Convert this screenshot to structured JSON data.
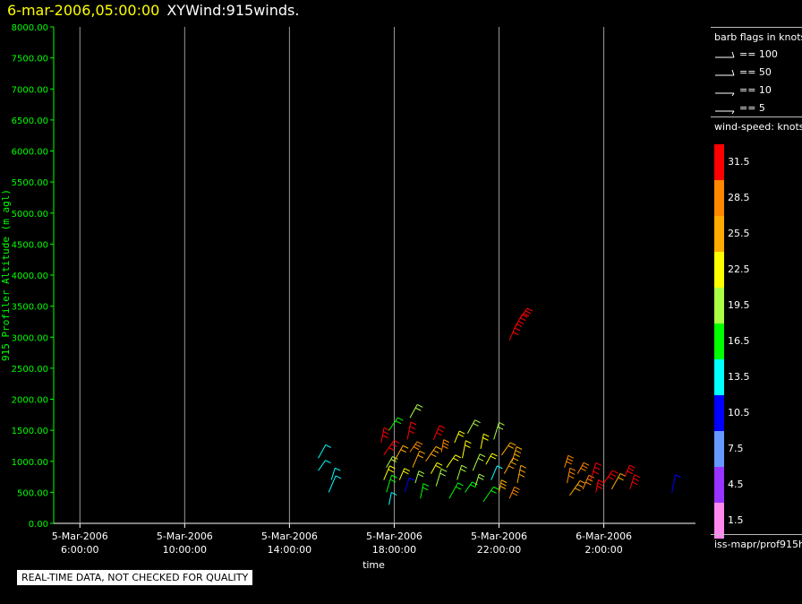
{
  "header": {
    "date": "6-mar-2006,05:00:00",
    "title": "XYWind:915winds."
  },
  "colors": {
    "axis": "#00ff00",
    "grid": "#9a9a9a",
    "tick_text": "#ffffff"
  },
  "legend": {
    "barb_title": "barb flags in knots",
    "barbs": [
      "== 100",
      "== 50",
      "== 10",
      "== 5"
    ],
    "speed_title": "wind-speed: knots",
    "bins": [
      {
        "label": "31.5",
        "color": "#ff0000"
      },
      {
        "label": "28.5",
        "color": "#ff8800"
      },
      {
        "label": "25.5",
        "color": "#ffaa00"
      },
      {
        "label": "22.5",
        "color": "#ffff00"
      },
      {
        "label": "19.5",
        "color": "#aaff44"
      },
      {
        "label": "16.5",
        "color": "#00ff00"
      },
      {
        "label": "13.5",
        "color": "#00ffff"
      },
      {
        "label": "10.5",
        "color": "#0000ff"
      },
      {
        "label": "7.5",
        "color": "#6699ff"
      },
      {
        "label": "4.5",
        "color": "#9933ff"
      },
      {
        "label": "1.5",
        "color": "#ff88ee"
      }
    ],
    "source": "iss-mapr/prof915h"
  },
  "notice": "REAL-TIME DATA, NOT CHECKED FOR QUALITY",
  "chart_data": {
    "type": "scatter",
    "title": "6-mar-2006,05:00:00  XYWind:915winds.",
    "xlabel": "time",
    "ylabel": "915 Profiler Altitude (m agl)",
    "x_ticks": [
      {
        "date": "5-Mar-2006",
        "time": "6:00:00"
      },
      {
        "date": "5-Mar-2006",
        "time": "10:00:00"
      },
      {
        "date": "5-Mar-2006",
        "time": "14:00:00"
      },
      {
        "date": "5-Mar-2006",
        "time": "18:00:00"
      },
      {
        "date": "5-Mar-2006",
        "time": "22:00:00"
      },
      {
        "date": "6-Mar-2006",
        "time": "2:00:00"
      }
    ],
    "y_ticks": [
      "0.00",
      "500.00",
      "1000.00",
      "1500.00",
      "2000.00",
      "2500.00",
      "3000.00",
      "3500.00",
      "4000.00",
      "4500.00",
      "5000.00",
      "5500.00",
      "6000.00",
      "6500.00",
      "7000.00",
      "7500.00",
      "8000.00"
    ],
    "xlim_hours": [
      5.0,
      29.5
    ],
    "ylim": [
      0,
      8000
    ],
    "grid": "vertical lines at x ticks",
    "x_unit": "hours since 5-Mar-2006 00:00",
    "obs": [
      {
        "t": 15.1,
        "z": 850,
        "kt": 12
      },
      {
        "t": 15.1,
        "z": 1050,
        "kt": 13
      },
      {
        "t": 15.5,
        "z": 500,
        "kt": 13
      },
      {
        "t": 15.6,
        "z": 700,
        "kt": 12
      },
      {
        "t": 17.5,
        "z": 1300,
        "kt": 31
      },
      {
        "t": 17.6,
        "z": 1100,
        "kt": 30
      },
      {
        "t": 17.7,
        "z": 900,
        "kt": 20
      },
      {
        "t": 17.6,
        "z": 700,
        "kt": 22
      },
      {
        "t": 17.7,
        "z": 500,
        "kt": 16
      },
      {
        "t": 17.8,
        "z": 300,
        "kt": 13
      },
      {
        "t": 17.8,
        "z": 1500,
        "kt": 17
      },
      {
        "t": 18.0,
        "z": 1000,
        "kt": 24
      },
      {
        "t": 18.2,
        "z": 700,
        "kt": 23
      },
      {
        "t": 18.4,
        "z": 500,
        "kt": 11
      },
      {
        "t": 18.5,
        "z": 1350,
        "kt": 31
      },
      {
        "t": 18.6,
        "z": 1150,
        "kt": 29
      },
      {
        "t": 18.6,
        "z": 1700,
        "kt": 18
      },
      {
        "t": 18.7,
        "z": 900,
        "kt": 24
      },
      {
        "t": 18.8,
        "z": 650,
        "kt": 20
      },
      {
        "t": 19.0,
        "z": 400,
        "kt": 17
      },
      {
        "t": 19.2,
        "z": 1000,
        "kt": 26
      },
      {
        "t": 19.4,
        "z": 800,
        "kt": 23
      },
      {
        "t": 19.5,
        "z": 1350,
        "kt": 30
      },
      {
        "t": 19.6,
        "z": 600,
        "kt": 19
      },
      {
        "t": 19.8,
        "z": 1150,
        "kt": 27
      },
      {
        "t": 20.0,
        "z": 900,
        "kt": 23
      },
      {
        "t": 20.1,
        "z": 400,
        "kt": 15
      },
      {
        "t": 20.3,
        "z": 1300,
        "kt": 21
      },
      {
        "t": 20.4,
        "z": 700,
        "kt": 18
      },
      {
        "t": 20.6,
        "z": 1050,
        "kt": 22
      },
      {
        "t": 20.7,
        "z": 500,
        "kt": 16
      },
      {
        "t": 20.8,
        "z": 1450,
        "kt": 19
      },
      {
        "t": 21.0,
        "z": 850,
        "kt": 20
      },
      {
        "t": 21.1,
        "z": 600,
        "kt": 18
      },
      {
        "t": 21.3,
        "z": 1200,
        "kt": 22
      },
      {
        "t": 21.4,
        "z": 350,
        "kt": 17
      },
      {
        "t": 21.5,
        "z": 950,
        "kt": 23
      },
      {
        "t": 21.7,
        "z": 700,
        "kt": 12
      },
      {
        "t": 21.8,
        "z": 1350,
        "kt": 20
      },
      {
        "t": 22.0,
        "z": 500,
        "kt": 25
      },
      {
        "t": 22.1,
        "z": 1100,
        "kt": 24
      },
      {
        "t": 22.2,
        "z": 800,
        "kt": 26
      },
      {
        "t": 22.4,
        "z": 400,
        "kt": 27
      },
      {
        "t": 22.5,
        "z": 1000,
        "kt": 25
      },
      {
        "t": 22.7,
        "z": 650,
        "kt": 26
      },
      {
        "t": 22.8,
        "z": 3300,
        "kt": 32
      },
      {
        "t": 22.6,
        "z": 3150,
        "kt": 32
      },
      {
        "t": 22.4,
        "z": 2950,
        "kt": 32
      },
      {
        "t": 24.5,
        "z": 900,
        "kt": 29
      },
      {
        "t": 24.6,
        "z": 650,
        "kt": 27
      },
      {
        "t": 24.7,
        "z": 450,
        "kt": 26
      },
      {
        "t": 25.0,
        "z": 800,
        "kt": 29
      },
      {
        "t": 25.2,
        "z": 550,
        "kt": 28
      },
      {
        "t": 25.5,
        "z": 700,
        "kt": 31
      },
      {
        "t": 25.7,
        "z": 500,
        "kt": 30
      },
      {
        "t": 26.0,
        "z": 650,
        "kt": 32
      },
      {
        "t": 26.3,
        "z": 550,
        "kt": 24
      },
      {
        "t": 26.8,
        "z": 750,
        "kt": 30
      },
      {
        "t": 27.0,
        "z": 550,
        "kt": 31
      },
      {
        "t": 28.6,
        "z": 500,
        "kt": 10
      }
    ]
  }
}
